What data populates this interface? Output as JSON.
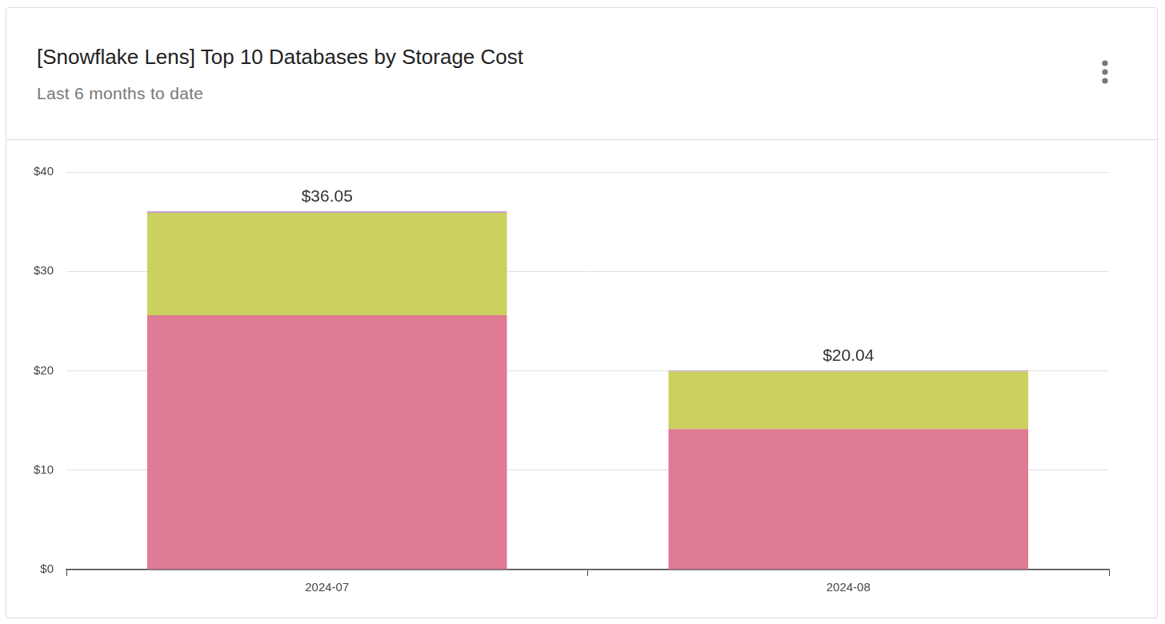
{
  "chart_data": {
    "type": "bar",
    "title": "[Snowflake Lens] Top 10 Databases by Storage Cost",
    "subtitle": "Last 6 months to date",
    "categories": [
      "2024-07",
      "2024-08"
    ],
    "series": [
      {
        "color": "#e07b96",
        "values": [
          25.6,
          14.14
        ]
      },
      {
        "color": "#cbd15e",
        "values": [
          10.3,
          5.8
        ]
      },
      {
        "color": "#c8a2d8",
        "values": [
          0.15,
          0.1
        ]
      }
    ],
    "totals": [
      36.05,
      20.04
    ],
    "total_labels": [
      "$36.05",
      "$20.04"
    ],
    "stacked": true,
    "grid": true,
    "ylim": [
      0,
      40
    ],
    "yticks": [
      {
        "value": 0,
        "label": "$0"
      },
      {
        "value": 10,
        "label": "$10"
      },
      {
        "value": 20,
        "label": "$20"
      },
      {
        "value": 30,
        "label": "$30"
      },
      {
        "value": 40,
        "label": "$40"
      }
    ]
  }
}
